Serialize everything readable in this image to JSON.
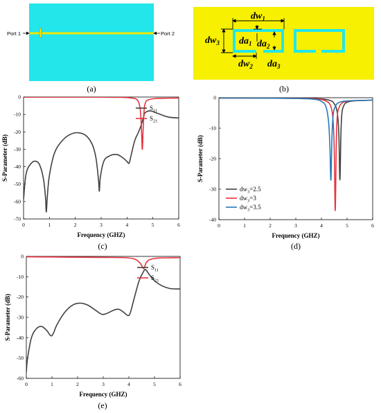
{
  "panels": {
    "a": {
      "label": "(a)",
      "port1": "Port 1",
      "port2": "Port 2",
      "bg_color": "#22e6ea",
      "line_color": "#f2e600"
    },
    "b": {
      "label": "(b)",
      "bg_color": "#f7f000",
      "ring_color": "#22e6ea",
      "dims": {
        "dw1": {
          "base": "dw",
          "sub": "1"
        },
        "dw2": {
          "base": "dw",
          "sub": "2"
        },
        "dw3": {
          "base": "dw",
          "sub": "3"
        },
        "da1": {
          "base": "da",
          "sub": "1"
        },
        "da2": {
          "base": "da",
          "sub": "2"
        },
        "da3": {
          "base": "da",
          "sub": "3"
        }
      }
    },
    "c": {
      "label": "(c)"
    },
    "d": {
      "label": "(d)"
    },
    "e": {
      "label": "(e)"
    }
  },
  "chart_data": [
    {
      "id": "c",
      "type": "line",
      "xlabel": "Frequency (GHZ)",
      "ylabel": "S-Parameter (dB)",
      "xlim": [
        0,
        6
      ],
      "ylim": [
        -70,
        0
      ],
      "xticks": [
        0,
        1,
        2,
        3,
        4,
        5,
        6
      ],
      "yticks": [
        0,
        -10,
        -20,
        -30,
        -40,
        -50,
        -60,
        -70
      ],
      "grid": false,
      "legend_position": "top-right",
      "series": [
        {
          "name": "S11",
          "name_base": "S",
          "name_sub": "11",
          "color": "#404040",
          "x": [
            0,
            0.1,
            0.3,
            0.5,
            0.65,
            0.78,
            0.85,
            0.88,
            0.92,
            1.0,
            1.2,
            1.5,
            1.8,
            2.1,
            2.4,
            2.65,
            2.8,
            2.9,
            2.93,
            2.97,
            3.1,
            3.3,
            3.6,
            3.85,
            4.0,
            4.08,
            4.15,
            4.3,
            4.45,
            4.55,
            4.65,
            4.7,
            4.9,
            5.2,
            5.6,
            6.0
          ],
          "y": [
            -59,
            -44,
            -38,
            -37,
            -40,
            -48,
            -58,
            -66,
            -57,
            -45,
            -32,
            -25,
            -21.5,
            -20.5,
            -22,
            -27,
            -35,
            -48,
            -54,
            -46,
            -37,
            -34,
            -33,
            -35,
            -37,
            -38,
            -34,
            -25,
            -20,
            -16,
            -11,
            -9,
            -8,
            -9.5,
            -11.5,
            -12
          ]
        },
        {
          "name": "S21",
          "name_base": "S",
          "name_sub": "21",
          "color": "#e8323c",
          "x": [
            0,
            1,
            2,
            3,
            3.8,
            4.2,
            4.4,
            4.5,
            4.55,
            4.59,
            4.62,
            4.66,
            4.72,
            4.85,
            5.1,
            5.5,
            6.0
          ],
          "y": [
            -0.1,
            -0.1,
            -0.1,
            -0.1,
            -0.2,
            -0.6,
            -1.8,
            -6,
            -15,
            -30,
            -20,
            -8,
            -3,
            -1.5,
            -0.9,
            -0.7,
            -0.6
          ]
        }
      ]
    },
    {
      "id": "d",
      "type": "line",
      "xlabel": "Frequency (GHZ)",
      "ylabel": "S-Parameter (dB)",
      "xlim": [
        0,
        6
      ],
      "ylim": [
        -40,
        0
      ],
      "xticks": [
        0,
        1,
        2,
        3,
        4,
        5,
        6
      ],
      "yticks": [
        0,
        -10,
        -20,
        -30,
        -40
      ],
      "grid": false,
      "legend_position": "bottom-left",
      "series": [
        {
          "name": "dw3=2.5",
          "name_base": "dw",
          "name_sub": "3",
          "name_suffix": "=2.5",
          "color": "#404040",
          "x": [
            0,
            1,
            2,
            3,
            3.8,
            4.3,
            4.5,
            4.62,
            4.68,
            4.72,
            4.76,
            4.8,
            4.88,
            5.0,
            5.3,
            6.0
          ],
          "y": [
            -0.1,
            -0.1,
            -0.15,
            -0.2,
            -0.3,
            -0.8,
            -2,
            -5,
            -12,
            -27,
            -12,
            -5,
            -2.5,
            -1.5,
            -1,
            -0.8
          ]
        },
        {
          "name": "dw3=3",
          "name_base": "dw",
          "name_sub": "3",
          "name_suffix": "=3",
          "color": "#e8323c",
          "x": [
            0,
            1,
            2,
            3,
            3.8,
            4.15,
            4.35,
            4.45,
            4.5,
            4.54,
            4.58,
            4.62,
            4.7,
            4.85,
            5.2,
            6.0
          ],
          "y": [
            -0.1,
            -0.1,
            -0.15,
            -0.2,
            -0.4,
            -1,
            -2.5,
            -7,
            -17,
            -37,
            -15,
            -6,
            -3,
            -1.5,
            -1,
            -0.8
          ]
        },
        {
          "name": "dw3=3.5",
          "name_base": "dw",
          "name_sub": "3",
          "name_suffix": "=3.5",
          "color": "#2577b8",
          "x": [
            0,
            1,
            2,
            3,
            3.7,
            4.0,
            4.18,
            4.28,
            4.33,
            4.37,
            4.41,
            4.46,
            4.55,
            4.7,
            5.1,
            6.0
          ],
          "y": [
            -0.1,
            -0.1,
            -0.15,
            -0.25,
            -0.5,
            -1.2,
            -3,
            -8,
            -16,
            -27,
            -13,
            -5.5,
            -2.8,
            -1.5,
            -1,
            -0.8
          ]
        }
      ]
    },
    {
      "id": "e",
      "type": "line",
      "xlabel": "Frequency (GHZ)",
      "ylabel": "S-Parameter (dB)",
      "xlim": [
        0,
        6
      ],
      "ylim": [
        -60,
        0
      ],
      "xticks": [
        0,
        1,
        2,
        3,
        4,
        5,
        6
      ],
      "yticks": [
        0,
        -10,
        -20,
        -30,
        -40,
        -50,
        -60
      ],
      "grid": false,
      "legend_position": "top-right",
      "series": [
        {
          "name": "S11",
          "name_base": "S",
          "name_sub": "11",
          "color": "#404040",
          "x": [
            0,
            0.05,
            0.2,
            0.4,
            0.6,
            0.8,
            0.95,
            1.05,
            1.2,
            1.5,
            1.8,
            2.1,
            2.4,
            2.7,
            2.95,
            3.15,
            3.4,
            3.6,
            3.8,
            3.95,
            4.05,
            4.2,
            4.4,
            4.55,
            4.65,
            4.8,
            5.0,
            5.3,
            5.6,
            5.9,
            6.0
          ],
          "y": [
            -57,
            -50,
            -40,
            -35.5,
            -34.5,
            -36.5,
            -39,
            -38,
            -33.5,
            -27.5,
            -24,
            -23,
            -24,
            -26.5,
            -28.5,
            -28,
            -26.5,
            -26,
            -27.5,
            -29,
            -28,
            -21,
            -12,
            -8,
            -6.5,
            -9,
            -12,
            -14.5,
            -15.8,
            -16,
            -16
          ]
        },
        {
          "name": "S21",
          "name_base": "S",
          "name_sub": "21",
          "color": "#e8323c",
          "x": [
            0,
            1,
            2,
            3,
            3.8,
            4.2,
            4.4,
            4.5,
            4.57,
            4.62,
            4.68,
            4.78,
            4.95,
            5.2,
            5.6,
            6.0
          ],
          "y": [
            -0.2,
            -0.3,
            -0.4,
            -0.5,
            -0.6,
            -1.2,
            -2.8,
            -4.5,
            -6,
            -5,
            -3,
            -1.8,
            -1.1,
            -0.8,
            -0.7,
            -0.6
          ]
        }
      ]
    }
  ]
}
